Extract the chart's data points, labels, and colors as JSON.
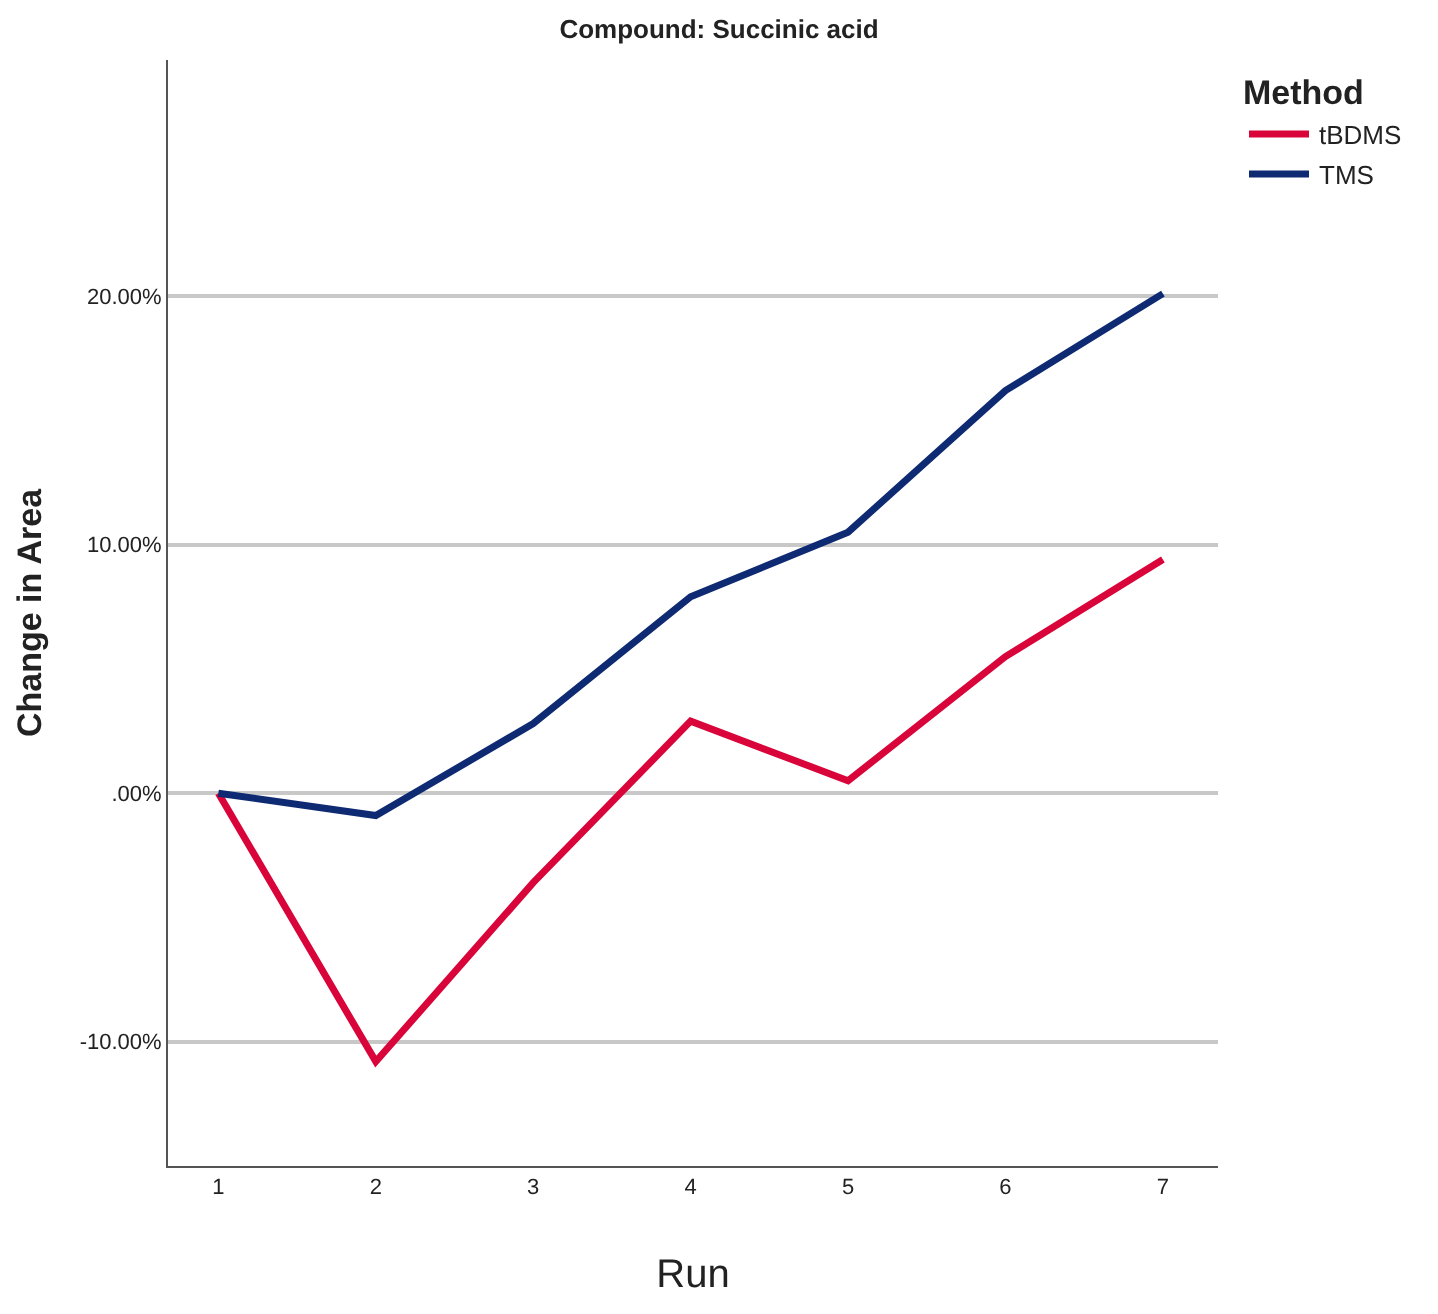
{
  "chart_data": {
    "type": "line",
    "title": "Compound: Succinic acid",
    "xlabel": "Run",
    "ylabel": "Change in Area",
    "legend_title": "Method",
    "x": [
      1,
      2,
      3,
      4,
      5,
      6,
      7
    ],
    "series": [
      {
        "name": "tBDMS",
        "color": "#d8043a",
        "values": [
          0,
          -10.8,
          -3.6,
          2.9,
          0.5,
          5.5,
          9.4
        ]
      },
      {
        "name": "TMS",
        "color": "#0e2a72",
        "values": [
          0,
          -0.9,
          2.8,
          7.9,
          10.5,
          16.2,
          20.1
        ]
      }
    ],
    "xlim": [
      0.68,
      7.35
    ],
    "xticks": [
      1,
      2,
      3,
      4,
      5,
      6,
      7
    ],
    "ylim": [
      -15,
      29.5
    ],
    "yticks": [
      {
        "value": -10,
        "label": "-10.00%"
      },
      {
        "value": 0,
        "label": ".00%"
      },
      {
        "value": 10,
        "label": "10.00%"
      },
      {
        "value": 20,
        "label": "20.00%"
      }
    ],
    "grid": "y",
    "legend": "top right",
    "marker": "none",
    "line_style": "solid"
  }
}
